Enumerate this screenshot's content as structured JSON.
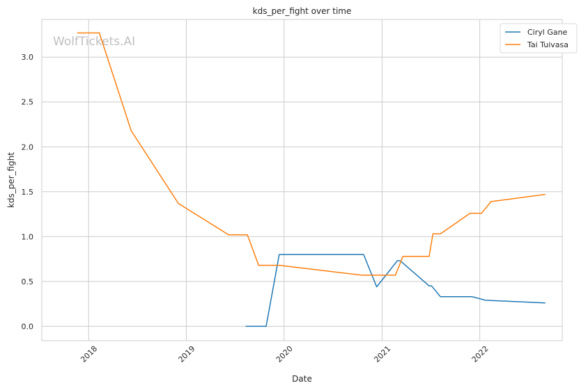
{
  "chart_data": {
    "type": "line",
    "title": "kds_per_fight over time",
    "xlabel": "Date",
    "ylabel": "kds_per_fight",
    "watermark": "WolfTickets.AI",
    "x_ticks": [
      "2018",
      "2019",
      "2020",
      "2021",
      "2022"
    ],
    "y_ticks": [
      "0.0",
      "0.5",
      "1.0",
      "1.5",
      "2.0",
      "2.5",
      "3.0"
    ],
    "xlim": [
      "2017-07-10",
      "2022-11-05"
    ],
    "ylim": [
      -0.16,
      3.42
    ],
    "grid": true,
    "legend_position": "top-right",
    "series": [
      {
        "name": "Ciryl Gane",
        "color": "#1f77b4",
        "points": [
          [
            "2019-08-10",
            0.0
          ],
          [
            "2019-10-26",
            0.0
          ],
          [
            "2019-12-14",
            0.8
          ],
          [
            "2020-10-24",
            0.8
          ],
          [
            "2020-12-12",
            0.44
          ],
          [
            "2021-02-27",
            0.73
          ],
          [
            "2021-03-10",
            0.73
          ],
          [
            "2021-06-26",
            0.45
          ],
          [
            "2021-07-05",
            0.45
          ],
          [
            "2021-08-07",
            0.33
          ],
          [
            "2021-12-04",
            0.33
          ],
          [
            "2022-01-22",
            0.29
          ],
          [
            "2022-09-03",
            0.26
          ]
        ]
      },
      {
        "name": "Tai Tuivasa",
        "color": "#ff7f0e",
        "points": [
          [
            "2017-11-19",
            3.27
          ],
          [
            "2018-02-10",
            3.27
          ],
          [
            "2018-06-09",
            2.18
          ],
          [
            "2018-12-02",
            1.37
          ],
          [
            "2019-06-08",
            1.02
          ],
          [
            "2019-08-17",
            1.02
          ],
          [
            "2019-09-28",
            0.68
          ],
          [
            "2019-12-14",
            0.68
          ],
          [
            "2020-10-17",
            0.57
          ],
          [
            "2021-02-20",
            0.57
          ],
          [
            "2021-03-20",
            0.78
          ],
          [
            "2021-06-26",
            0.78
          ],
          [
            "2021-07-10",
            1.03
          ],
          [
            "2021-08-07",
            1.03
          ],
          [
            "2021-11-26",
            1.26
          ],
          [
            "2022-01-08",
            1.26
          ],
          [
            "2022-02-12",
            1.39
          ],
          [
            "2022-09-03",
            1.47
          ]
        ]
      }
    ]
  }
}
